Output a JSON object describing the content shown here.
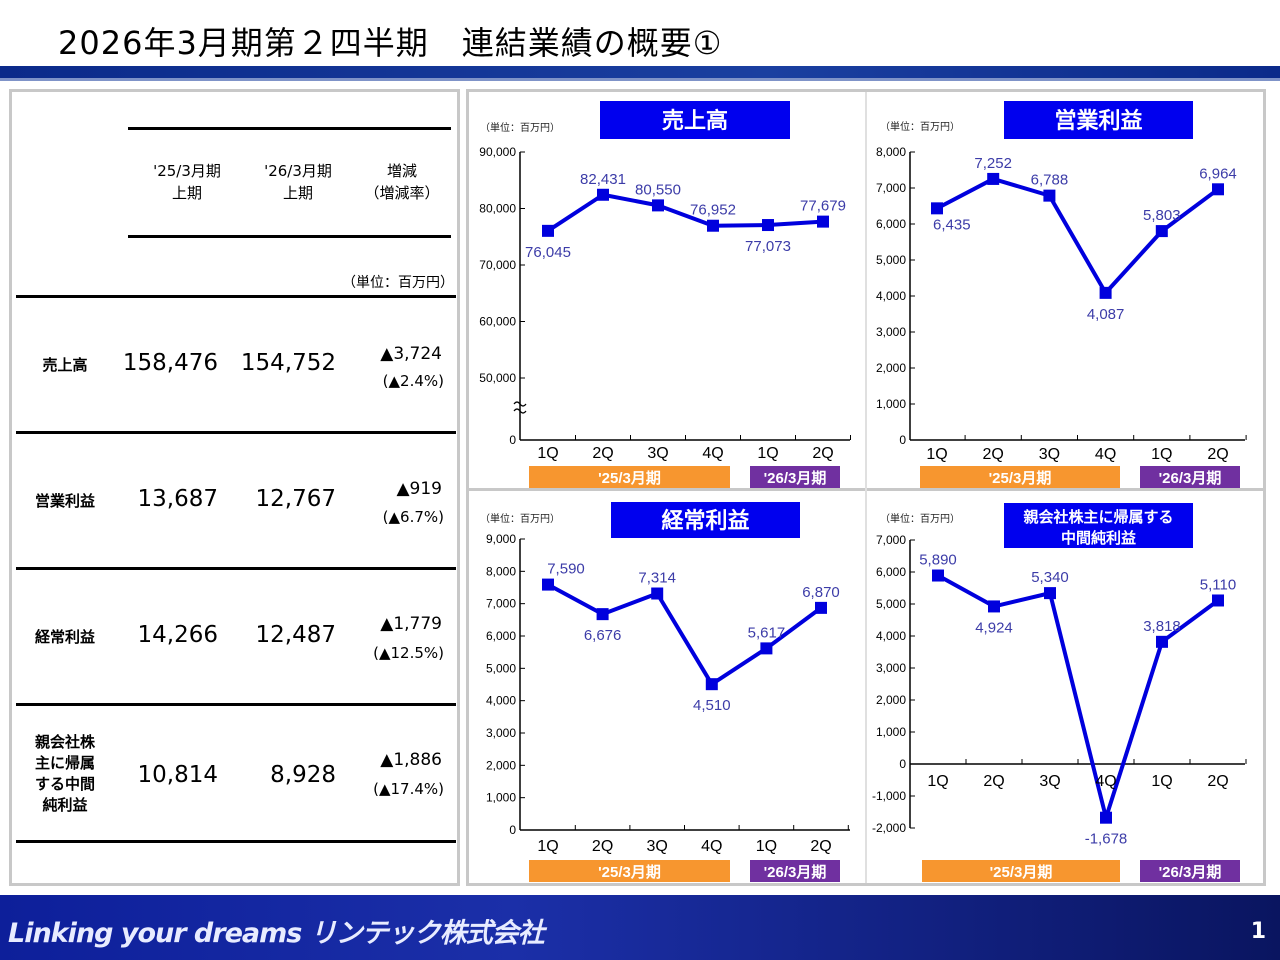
{
  "header": {
    "title": "2026年3月期第２四半期　連結業績の概要①"
  },
  "table": {
    "columns": [
      "'25/3月期\n上期",
      "'26/3月期\n上期",
      "増減\n（増減率）"
    ],
    "col1": [
      "'25/3月期",
      "上期"
    ],
    "col2": [
      "'26/3月期",
      "上期"
    ],
    "col3": [
      "増減",
      "（増減率）"
    ],
    "unit": "（単位：百万円）",
    "rows": [
      {
        "label": [
          "売上高"
        ],
        "prev": "158,476",
        "curr": "154,752",
        "diff": "▲3,724",
        "rate": "(▲2.4%)"
      },
      {
        "label": [
          "営業利益"
        ],
        "prev": "13,687",
        "curr": "12,767",
        "diff": "▲919",
        "rate": "(▲6.7%)"
      },
      {
        "label": [
          "経常利益"
        ],
        "prev": "14,266",
        "curr": "12,487",
        "diff": "▲1,779",
        "rate": "(▲12.5%)"
      },
      {
        "label": [
          "親会社株",
          "主に帰属",
          "する中間",
          "純利益"
        ],
        "prev": "10,814",
        "curr": "8,928",
        "diff": "▲1,886",
        "rate": "(▲17.4%)"
      }
    ]
  },
  "colors": {
    "line": "#0000dd",
    "label": "#3c3ca8",
    "title_bg": "#0000ee",
    "period1": "#f7962f",
    "period2": "#7030a0"
  },
  "chart_data": [
    {
      "type": "line",
      "title": "売上高",
      "unit": "（単位：百万円）",
      "categories": [
        "1Q",
        "2Q",
        "3Q",
        "4Q",
        "1Q",
        "2Q"
      ],
      "values": [
        76045,
        82431,
        80550,
        76952,
        77073,
        77679
      ],
      "labels": [
        "76,045",
        "82,431",
        "80,550",
        "76,952",
        "77,073",
        "77,679"
      ],
      "yticks": [
        0,
        50000,
        60000,
        70000,
        80000,
        90000
      ],
      "ytick_labels": [
        "0",
        "50,000",
        "60,000",
        "70,000",
        "80,000",
        "90,000"
      ],
      "ylim": [
        0,
        90000
      ],
      "axis_break": [
        0,
        50000
      ],
      "periods": [
        "'25/3月期",
        "'26/3月期"
      ]
    },
    {
      "type": "line",
      "title": "営業利益",
      "unit": "（単位：百万円）",
      "categories": [
        "1Q",
        "2Q",
        "3Q",
        "4Q",
        "1Q",
        "2Q"
      ],
      "values": [
        6435,
        7252,
        6788,
        4087,
        5803,
        6964
      ],
      "labels": [
        "6,435",
        "7,252",
        "6,788",
        "4,087",
        "5,803",
        "6,964"
      ],
      "yticks": [
        0,
        1000,
        2000,
        3000,
        4000,
        5000,
        6000,
        7000,
        8000
      ],
      "ytick_labels": [
        "0",
        "1,000",
        "2,000",
        "3,000",
        "4,000",
        "5,000",
        "6,000",
        "7,000",
        "8,000"
      ],
      "ylim": [
        0,
        8000
      ],
      "periods": [
        "'25/3月期",
        "'26/3月期"
      ]
    },
    {
      "type": "line",
      "title": "経常利益",
      "unit": "（単位：百万円）",
      "categories": [
        "1Q",
        "2Q",
        "3Q",
        "4Q",
        "1Q",
        "2Q"
      ],
      "values": [
        7590,
        6676,
        7314,
        4510,
        5617,
        6870
      ],
      "labels": [
        "7,590",
        "6,676",
        "7,314",
        "4,510",
        "5,617",
        "6,870"
      ],
      "yticks": [
        0,
        1000,
        2000,
        3000,
        4000,
        5000,
        6000,
        7000,
        8000,
        9000
      ],
      "ytick_labels": [
        "0",
        "1,000",
        "2,000",
        "3,000",
        "4,000",
        "5,000",
        "6,000",
        "7,000",
        "8,000",
        "9,000"
      ],
      "ylim": [
        0,
        9000
      ],
      "periods": [
        "'25/3月期",
        "'26/3月期"
      ]
    },
    {
      "type": "line",
      "title": "親会社株主に帰属する\n中間純利益",
      "title_lines": [
        "親会社株主に帰属する",
        "中間純利益"
      ],
      "unit": "（単位：百万円）",
      "categories": [
        "1Q",
        "2Q",
        "3Q",
        "4Q",
        "1Q",
        "2Q"
      ],
      "values": [
        5890,
        4924,
        5340,
        -1678,
        3818,
        5110
      ],
      "labels": [
        "5,890",
        "4,924",
        "5,340",
        "-1,678",
        "3,818",
        "5,110"
      ],
      "yticks": [
        -2000,
        -1000,
        0,
        1000,
        2000,
        3000,
        4000,
        5000,
        6000,
        7000
      ],
      "ytick_labels": [
        "-2,000",
        "-1,000",
        "0",
        "1,000",
        "2,000",
        "3,000",
        "4,000",
        "5,000",
        "6,000",
        "7,000"
      ],
      "ylim": [
        -2000,
        7000
      ],
      "periods": [
        "'25/3月期",
        "'26/3月期"
      ]
    }
  ],
  "footer": {
    "slogan": "Linking your dreams  リンテック株式会社",
    "page": "1"
  }
}
